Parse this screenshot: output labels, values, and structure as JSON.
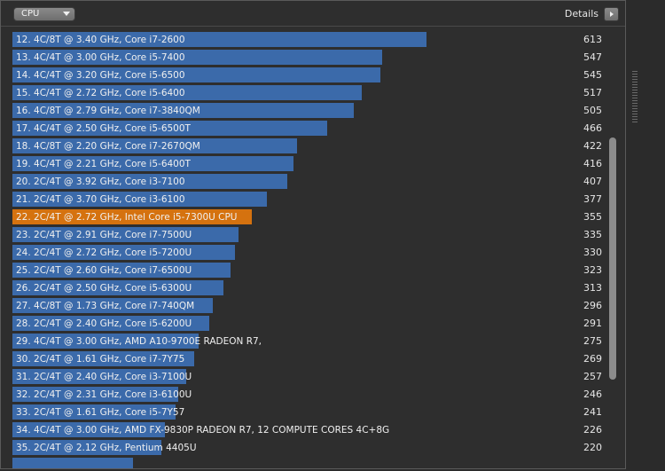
{
  "header": {
    "dropdown_value": "CPU",
    "details_label": "Details"
  },
  "colors": {
    "bar": "#3b6aaa",
    "highlight": "#d5720f",
    "background": "#2e2e2e"
  },
  "max_score": 613,
  "rows": [
    {
      "label": "12. 4C/8T @ 3.40 GHz, Core i7-2600",
      "score": 613,
      "highlight": false
    },
    {
      "label": "13. 4C/4T @ 3.00 GHz, Core i5-7400",
      "score": 547,
      "highlight": false
    },
    {
      "label": "14. 4C/4T @ 3.20 GHz, Core i5-6500",
      "score": 545,
      "highlight": false
    },
    {
      "label": "15. 4C/4T @ 2.72 GHz, Core i5-6400",
      "score": 517,
      "highlight": false
    },
    {
      "label": "16. 4C/8T @ 2.79 GHz, Core i7-3840QM",
      "score": 505,
      "highlight": false
    },
    {
      "label": "17. 4C/4T @ 2.50 GHz, Core i5-6500T",
      "score": 466,
      "highlight": false
    },
    {
      "label": "18. 4C/8T @ 2.20 GHz, Core i7-2670QM",
      "score": 422,
      "highlight": false
    },
    {
      "label": "19. 4C/4T @ 2.21 GHz, Core i5-6400T",
      "score": 416,
      "highlight": false
    },
    {
      "label": "20. 2C/4T @ 3.92 GHz, Core i3-7100",
      "score": 407,
      "highlight": false
    },
    {
      "label": "21. 2C/4T @ 3.70 GHz, Core i3-6100",
      "score": 377,
      "highlight": false
    },
    {
      "label": "22. 2C/4T @ 2.72 GHz, Intel Core i5-7300U CPU",
      "score": 355,
      "highlight": true
    },
    {
      "label": "23. 2C/4T @ 2.91 GHz, Core i7-7500U",
      "score": 335,
      "highlight": false
    },
    {
      "label": "24. 2C/4T @ 2.72 GHz, Core i5-7200U",
      "score": 330,
      "highlight": false
    },
    {
      "label": "25. 2C/4T @ 2.60 GHz, Core i7-6500U",
      "score": 323,
      "highlight": false
    },
    {
      "label": "26. 2C/4T @ 2.50 GHz, Core i5-6300U",
      "score": 313,
      "highlight": false
    },
    {
      "label": "27. 4C/8T @ 1.73 GHz, Core i7-740QM",
      "score": 296,
      "highlight": false
    },
    {
      "label": "28. 2C/4T @ 2.40 GHz, Core i5-6200U",
      "score": 291,
      "highlight": false
    },
    {
      "label": "29. 4C/4T @ 3.00 GHz, AMD A10-9700E RADEON R7,",
      "score": 275,
      "highlight": false
    },
    {
      "label": "30. 2C/4T @ 1.61 GHz, Core i7-7Y75",
      "score": 269,
      "highlight": false
    },
    {
      "label": "31. 2C/4T @ 2.40 GHz, Core i3-7100U",
      "score": 257,
      "highlight": false
    },
    {
      "label": "32. 2C/4T @ 2.31 GHz, Core i3-6100U",
      "score": 246,
      "highlight": false
    },
    {
      "label": "33. 2C/4T @ 1.61 GHz, Core i5-7Y57",
      "score": 241,
      "highlight": false
    },
    {
      "label": "34. 4C/4T @ 3.00 GHz, AMD FX-9830P RADEON R7, 12 COMPUTE CORES 4C+8G",
      "score": 226,
      "highlight": false
    },
    {
      "label": "35. 2C/4T @ 2.12 GHz, Pentium 4405U",
      "score": 220,
      "highlight": false
    },
    {
      "label": "",
      "score": 178,
      "highlight": false
    }
  ]
}
